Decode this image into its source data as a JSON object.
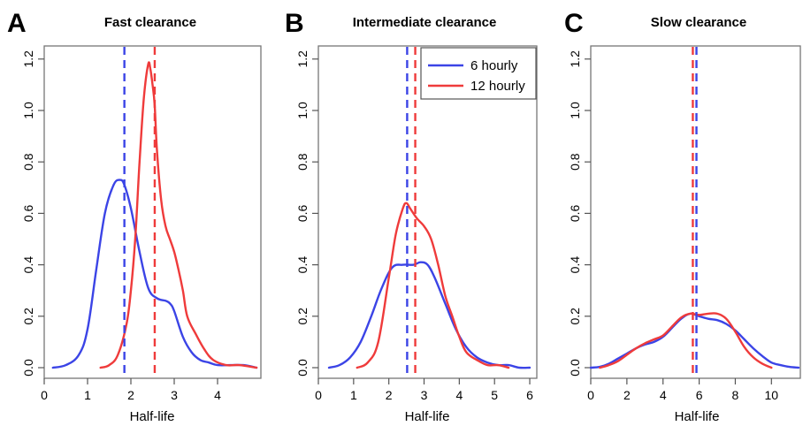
{
  "colors": {
    "six_hourly": "#3b44e6",
    "twelve_hourly": "#ef3b3b"
  },
  "chart_data": [
    {
      "type": "line",
      "panel": "A",
      "title": "Fast clearance",
      "xlabel": "Half-life",
      "ylabel": "",
      "xlim": [
        0,
        5
      ],
      "ylim": [
        0,
        1.25
      ],
      "xticks": [
        "0",
        "1",
        "2",
        "3",
        "4"
      ],
      "yticks": [
        "0.0",
        "0.2",
        "0.4",
        "0.6",
        "0.8",
        "1.0",
        "1.2"
      ],
      "legend": null,
      "series": [
        {
          "key": "six_hourly",
          "x": [
            0.2,
            0.5,
            0.8,
            1.0,
            1.2,
            1.4,
            1.6,
            1.75,
            1.85,
            2.0,
            2.2,
            2.4,
            2.6,
            2.8,
            2.9,
            3.0,
            3.2,
            3.4,
            3.6,
            3.8,
            4.0,
            4.3,
            4.6,
            4.9
          ],
          "y": [
            0.0,
            0.01,
            0.05,
            0.15,
            0.38,
            0.6,
            0.71,
            0.73,
            0.71,
            0.62,
            0.45,
            0.31,
            0.27,
            0.26,
            0.25,
            0.22,
            0.12,
            0.06,
            0.03,
            0.02,
            0.01,
            0.01,
            0.01,
            0.0
          ]
        },
        {
          "key": "twelve_hourly",
          "x": [
            1.3,
            1.5,
            1.7,
            1.9,
            2.0,
            2.1,
            2.2,
            2.3,
            2.4,
            2.45,
            2.5,
            2.55,
            2.6,
            2.7,
            2.8,
            2.9,
            3.0,
            3.1,
            3.2,
            3.3,
            3.5,
            3.7,
            3.9,
            4.2,
            4.5,
            4.9
          ],
          "y": [
            0.0,
            0.01,
            0.05,
            0.17,
            0.3,
            0.5,
            0.8,
            1.05,
            1.18,
            1.16,
            1.1,
            1.02,
            0.85,
            0.65,
            0.55,
            0.5,
            0.45,
            0.38,
            0.3,
            0.2,
            0.13,
            0.07,
            0.03,
            0.01,
            0.01,
            0.0
          ]
        }
      ],
      "vlines": [
        {
          "key": "six_hourly",
          "x": 1.85
        },
        {
          "key": "twelve_hourly",
          "x": 2.55
        }
      ]
    },
    {
      "type": "line",
      "panel": "B",
      "title": "Intermediate clearance",
      "xlabel": "Half-life",
      "ylabel": "",
      "xlim": [
        0,
        6.2
      ],
      "ylim": [
        0,
        1.25
      ],
      "xticks": [
        "0",
        "1",
        "2",
        "3",
        "4",
        "5",
        "6"
      ],
      "yticks": [
        "0.0",
        "0.2",
        "0.4",
        "0.6",
        "0.8",
        "1.0",
        "1.2"
      ],
      "legend": {
        "entries": [
          "6 hourly",
          "12 hourly"
        ],
        "position": "top-right"
      },
      "series": [
        {
          "key": "six_hourly",
          "x": [
            0.3,
            0.6,
            0.9,
            1.2,
            1.5,
            1.8,
            2.1,
            2.4,
            2.7,
            2.9,
            3.1,
            3.3,
            3.6,
            3.9,
            4.2,
            4.5,
            4.8,
            5.1,
            5.4,
            5.7,
            6.0
          ],
          "y": [
            0.0,
            0.01,
            0.04,
            0.1,
            0.2,
            0.31,
            0.39,
            0.4,
            0.4,
            0.41,
            0.4,
            0.35,
            0.25,
            0.15,
            0.08,
            0.04,
            0.02,
            0.01,
            0.01,
            0.0,
            0.0
          ]
        },
        {
          "key": "twelve_hourly",
          "x": [
            1.1,
            1.4,
            1.7,
            2.0,
            2.2,
            2.4,
            2.5,
            2.6,
            2.8,
            3.0,
            3.2,
            3.4,
            3.6,
            3.8,
            4.0,
            4.2,
            4.5,
            4.8,
            5.1,
            5.4
          ],
          "y": [
            0.0,
            0.02,
            0.1,
            0.35,
            0.52,
            0.62,
            0.64,
            0.62,
            0.58,
            0.55,
            0.5,
            0.4,
            0.28,
            0.2,
            0.12,
            0.06,
            0.03,
            0.01,
            0.01,
            0.0
          ]
        }
      ],
      "vlines": [
        {
          "key": "six_hourly",
          "x": 2.52
        },
        {
          "key": "twelve_hourly",
          "x": 2.75
        }
      ]
    },
    {
      "type": "line",
      "panel": "C",
      "title": "Slow clearance",
      "xlabel": "Half-life",
      "ylabel": "",
      "xlim": [
        0,
        11.6
      ],
      "ylim": [
        0,
        1.25
      ],
      "xticks": [
        "0",
        "2",
        "4",
        "6",
        "8",
        "10"
      ],
      "yticks": [
        "0.0",
        "0.2",
        "0.4",
        "0.6",
        "0.8",
        "1.0",
        "1.2"
      ],
      "legend": null,
      "series": [
        {
          "key": "six_hourly",
          "x": [
            0.0,
            0.5,
            1.0,
            1.5,
            2.0,
            2.5,
            3.0,
            3.5,
            4.0,
            4.5,
            5.0,
            5.5,
            6.0,
            6.5,
            7.0,
            7.5,
            8.0,
            8.5,
            9.0,
            9.5,
            10.0,
            10.5,
            11.0,
            11.5
          ],
          "y": [
            0.0,
            0.003,
            0.015,
            0.035,
            0.055,
            0.075,
            0.09,
            0.1,
            0.12,
            0.155,
            0.19,
            0.21,
            0.2,
            0.19,
            0.185,
            0.17,
            0.145,
            0.11,
            0.075,
            0.045,
            0.02,
            0.01,
            0.003,
            0.0
          ]
        },
        {
          "key": "twelve_hourly",
          "x": [
            0.5,
            1.0,
            1.5,
            2.0,
            2.5,
            3.0,
            3.5,
            4.0,
            4.5,
            5.0,
            5.5,
            6.0,
            6.5,
            7.0,
            7.5,
            8.0,
            8.5,
            9.0,
            9.5,
            10.0
          ],
          "y": [
            0.0,
            0.01,
            0.025,
            0.05,
            0.075,
            0.095,
            0.11,
            0.125,
            0.16,
            0.195,
            0.21,
            0.205,
            0.21,
            0.21,
            0.19,
            0.14,
            0.08,
            0.04,
            0.015,
            0.0
          ]
        }
      ],
      "vlines": [
        {
          "key": "six_hourly",
          "x": 5.85
        },
        {
          "key": "twelve_hourly",
          "x": 5.65
        }
      ]
    }
  ]
}
